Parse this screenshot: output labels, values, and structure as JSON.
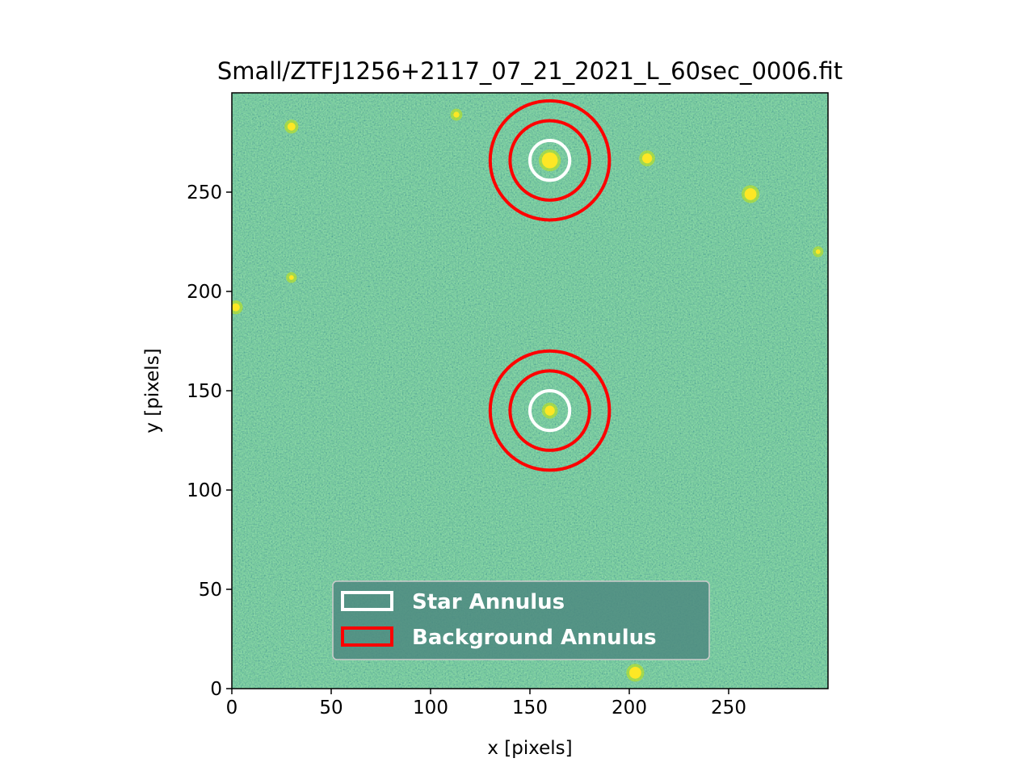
{
  "chart_data": {
    "type": "image",
    "title": "Small/ZTFJ1256+2117_07_21_2021_L_60sec_0006.fit",
    "xlabel": "x [pixels]",
    "ylabel": "y [pixels]",
    "xlim": [
      0,
      300
    ],
    "ylim": [
      0,
      300
    ],
    "xticks": [
      0,
      50,
      100,
      150,
      200,
      250
    ],
    "yticks": [
      0,
      50,
      100,
      150,
      200,
      250
    ],
    "image": {
      "colormap": "viridis",
      "background_color": "#2fa57e",
      "bright_sources": [
        {
          "x": 160,
          "y": 266,
          "r": 4
        },
        {
          "x": 160,
          "y": 140,
          "r": 2.5
        },
        {
          "x": 209,
          "y": 267,
          "r": 2.5
        },
        {
          "x": 261,
          "y": 249,
          "r": 3
        },
        {
          "x": 203,
          "y": 8,
          "r": 3
        },
        {
          "x": 30,
          "y": 283,
          "r": 2
        },
        {
          "x": 113,
          "y": 289,
          "r": 1.5
        },
        {
          "x": 2,
          "y": 192,
          "r": 2
        },
        {
          "x": 30,
          "y": 207,
          "r": 1.2
        },
        {
          "x": 295,
          "y": 220,
          "r": 1.2
        }
      ]
    },
    "annuli": [
      {
        "x": 160,
        "y": 266,
        "star_r": 10,
        "bg_inner_r": 20,
        "bg_outer_r": 30
      },
      {
        "x": 160,
        "y": 140,
        "star_r": 10,
        "bg_inner_r": 20,
        "bg_outer_r": 30
      }
    ],
    "colors": {
      "star": "#ffffff",
      "background": "#ff0000"
    },
    "legend": {
      "placement": "lower-center",
      "entries": [
        {
          "label": "Star Annulus",
          "color": "#ffffff"
        },
        {
          "label": "Background Annulus",
          "color": "#ff0000"
        }
      ]
    },
    "grid": false
  }
}
